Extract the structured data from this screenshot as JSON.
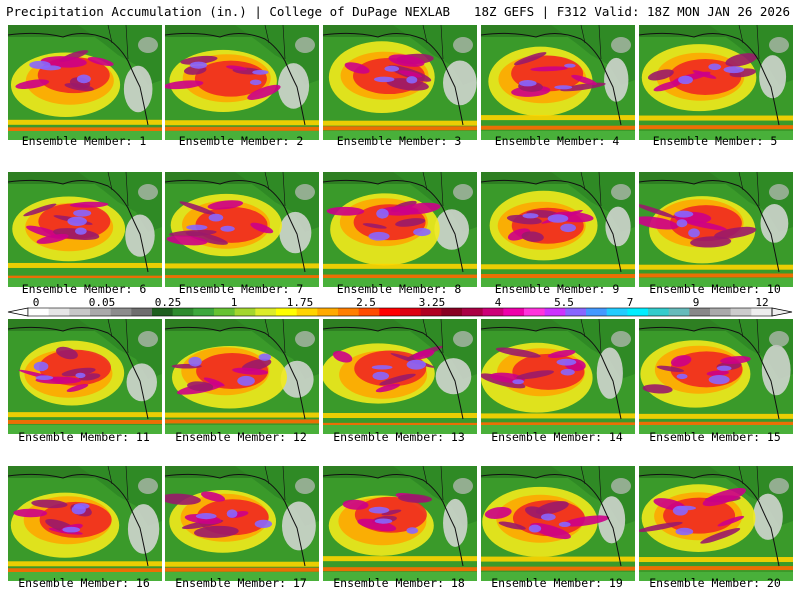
{
  "header": {
    "left": "Precipitation Accumulation (in.) | College of DuPage NEXLAB",
    "right": "18Z GEFS | F312 Valid: 18Z MON JAN 26 2026"
  },
  "members": [
    {
      "label": "Ensemble Member: 1"
    },
    {
      "label": "Ensemble Member: 2"
    },
    {
      "label": "Ensemble Member: 3"
    },
    {
      "label": "Ensemble Member: 4"
    },
    {
      "label": "Ensemble Member: 5"
    },
    {
      "label": "Ensemble Member: 6"
    },
    {
      "label": "Ensemble Member: 7"
    },
    {
      "label": "Ensemble Member: 8"
    },
    {
      "label": "Ensemble Member: 9"
    },
    {
      "label": "Ensemble Member: 10"
    },
    {
      "label": "Ensemble Member: 11"
    },
    {
      "label": "Ensemble Member: 12"
    },
    {
      "label": "Ensemble Member: 13"
    },
    {
      "label": "Ensemble Member: 14"
    },
    {
      "label": "Ensemble Member: 15"
    },
    {
      "label": "Ensemble Member: 16"
    },
    {
      "label": "Ensemble Member: 17"
    },
    {
      "label": "Ensemble Member: 18"
    },
    {
      "label": "Ensemble Member: 19"
    },
    {
      "label": "Ensemble Member: 20"
    }
  ],
  "colorbar": {
    "labels": [
      "0",
      "0.05",
      "0.25",
      "1",
      "1.75",
      "2.5",
      "3.25",
      "4",
      "5.5",
      "7",
      "9",
      "12"
    ],
    "colors": [
      "#ffffff",
      "#e6e6e6",
      "#c8c8c8",
      "#aaaaaa",
      "#8c8c8c",
      "#6e6e6e",
      "#1f5f1f",
      "#2e8b2e",
      "#3da83d",
      "#66c233",
      "#a3d62e",
      "#dcec2a",
      "#ffff00",
      "#ffd400",
      "#ffaa00",
      "#ff7f00",
      "#ff4c00",
      "#ff0000",
      "#dd0011",
      "#b00022",
      "#880022",
      "#aa0044",
      "#cc0077",
      "#ee00aa",
      "#ff33dd",
      "#cc33ff",
      "#8866ff",
      "#4499ff",
      "#22ccff",
      "#00eeff",
      "#33cccc",
      "#66bbbb",
      "#888888",
      "#aaaaaa",
      "#cccccc",
      "#eeeeee"
    ]
  }
}
